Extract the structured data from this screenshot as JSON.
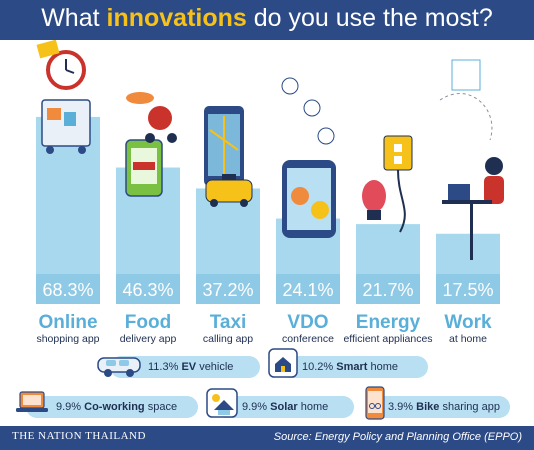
{
  "header": {
    "title_before": "What ",
    "title_highlight": "innovations",
    "title_after": " do you use the most?"
  },
  "colors": {
    "header_bg": "#2c4a86",
    "bar_fill": "#a8d8ee",
    "bar_dark": "#7bb8da",
    "value_bg": "#8ec9e6",
    "accent_yellow": "#f6c21a",
    "label_blue": "#5aafd9"
  },
  "chart_data": {
    "type": "bar",
    "unit": "%",
    "ylim": [
      0,
      100
    ],
    "categories": [
      {
        "label": "Online",
        "sublabel": "shopping app",
        "value": 68.3,
        "display": "68.3%",
        "icon": "shopping-cart-clock-icon"
      },
      {
        "label": "Food",
        "sublabel": "delivery app",
        "value": 46.3,
        "display": "46.3%",
        "icon": "food-delivery-scooter-icon"
      },
      {
        "label": "Taxi",
        "sublabel": "calling app",
        "value": 37.2,
        "display": "37.2%",
        "icon": "taxi-map-icon"
      },
      {
        "label": "VDO",
        "sublabel": "conference",
        "value": 24.1,
        "display": "24.1%",
        "icon": "video-call-phone-icon"
      },
      {
        "label": "Energy",
        "sublabel": "efficient appliances",
        "value": 21.7,
        "display": "21.7%",
        "icon": "energy-bulb-socket-icon"
      },
      {
        "label": "Work",
        "sublabel": "at home",
        "value": 17.5,
        "display": "17.5%",
        "icon": "work-from-home-desk-icon"
      }
    ],
    "secondary": [
      {
        "display": "11.3%",
        "label": "EV",
        "suffix": "vehicle",
        "value": 11.3,
        "icon": "ev-car-icon"
      },
      {
        "display": "10.2%",
        "label": "Smart",
        "suffix": "home",
        "value": 10.2,
        "icon": "smart-home-icon"
      },
      {
        "display": "9.9%",
        "label": "Co-working",
        "suffix": "space",
        "value": 9.9,
        "icon": "laptop-icon"
      },
      {
        "display": "9.9%",
        "label": "Solar",
        "suffix": "home",
        "value": 9.9,
        "icon": "solar-house-icon"
      },
      {
        "display": "3.9%",
        "label": "Bike",
        "suffix": "sharing app",
        "value": 3.9,
        "icon": "bike-phone-icon"
      }
    ]
  },
  "footer": {
    "logo": "THE NATION THAILAND",
    "source": "Source: Energy Policy and Planning Office (EPPO)"
  }
}
